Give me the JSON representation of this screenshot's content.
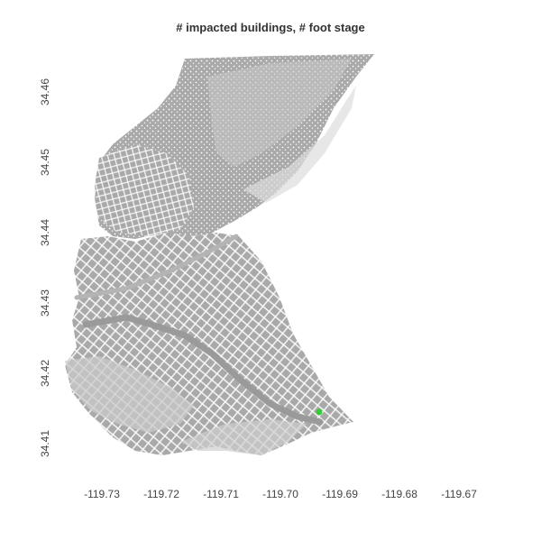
{
  "title": "# impacted buildings, # foot stage",
  "colors": {
    "terrain": "#a9a9a9",
    "terrain_light": "#d0d0d0",
    "buildings": "#ffffff",
    "impacted_building": "#33cc33",
    "background": "#ffffff"
  },
  "chart_data": {
    "type": "map",
    "title": "# impacted buildings, # foot stage",
    "xlabel": "",
    "ylabel": "",
    "x_ticks": [
      "-119.73",
      "-119.72",
      "-119.71",
      "-119.70",
      "-119.69",
      "-119.68",
      "-119.67"
    ],
    "y_ticks": [
      "34.41",
      "34.42",
      "34.43",
      "34.44",
      "34.45",
      "34.46"
    ],
    "impacted_points": [
      {
        "lon": -119.6935,
        "lat": 34.4145
      }
    ],
    "grid": false,
    "legend": "none"
  }
}
